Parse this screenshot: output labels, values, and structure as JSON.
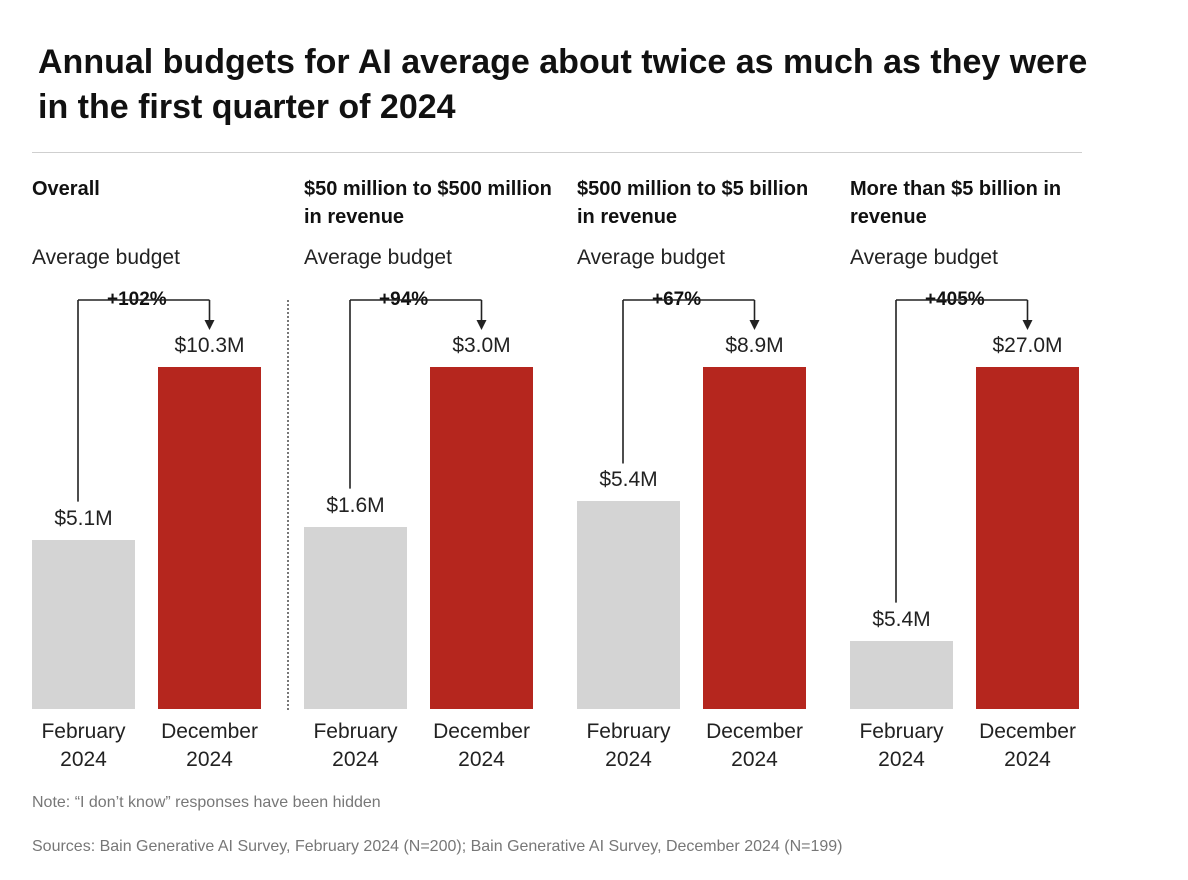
{
  "title": "Annual budgets for AI average about twice as much as they were in the first quarter of 2024",
  "colors": {
    "feb": "#d4d4d4",
    "dec": "#b5261e",
    "connector": "#222222"
  },
  "chart_data": {
    "type": "bar",
    "categories": [
      "February 2024",
      "December 2024"
    ],
    "category_lines": [
      [
        "February",
        "2024"
      ],
      [
        "December",
        "2024"
      ]
    ],
    "panels": [
      {
        "title": "Overall",
        "subtitle": "Average budget",
        "values": [
          5.1,
          10.3
        ],
        "labels": [
          "$5.1M",
          "$10.3M"
        ],
        "change": "+102%"
      },
      {
        "title": "$50 million to $500 million in revenue",
        "subtitle": "Average budget",
        "values": [
          1.6,
          3.0
        ],
        "labels": [
          "$1.6M",
          "$3.0M"
        ],
        "change": "+94%"
      },
      {
        "title": "$500 million to $5 billion in revenue",
        "subtitle": "Average budget",
        "values": [
          5.4,
          8.9
        ],
        "labels": [
          "$5.4M",
          "$8.9M"
        ],
        "change": "+67%"
      },
      {
        "title": "More than $5 billion in revenue",
        "subtitle": "Average budget",
        "values": [
          5.4,
          27.0
        ],
        "labels": [
          "$5.4M",
          "$27.0M"
        ],
        "change": "+405%"
      }
    ],
    "ylabel": "Average budget",
    "note": "Each panel is scaled independently (December bar shown at equal height)"
  },
  "note": "Note: “I don’t know” responses have been hidden",
  "sources": "Sources: Bain Generative AI Survey, February 2024 (N=200); Bain Generative AI Survey, December 2024 (N=199)"
}
